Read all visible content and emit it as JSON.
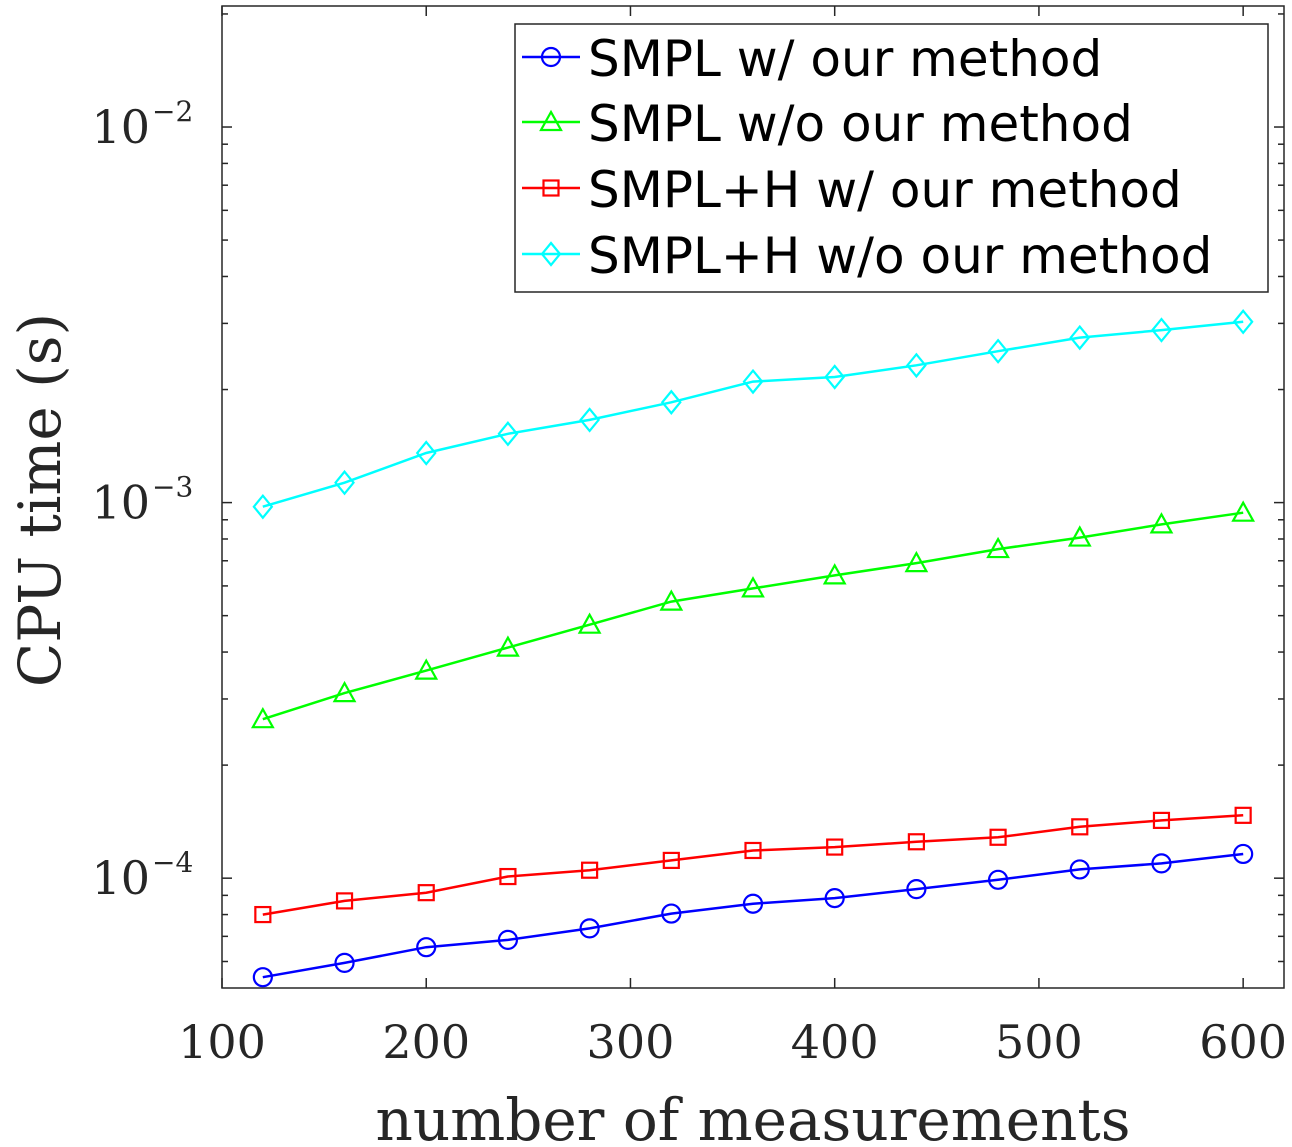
{
  "chart_data": {
    "type": "line",
    "title": "",
    "xlabel": "number of measurements",
    "ylabel": "CPU time (s)",
    "xscale": "linear",
    "yscale": "log",
    "xlim": [
      100,
      620
    ],
    "ylim": [
      5.1e-05,
      0.021
    ],
    "xticks": [
      100,
      200,
      300,
      400,
      500,
      600
    ],
    "yticks": [
      {
        "value": 0.01,
        "base": "10",
        "exponent": "−2"
      },
      {
        "value": 0.001,
        "base": "10",
        "exponent": "−3"
      },
      {
        "value": 0.0001,
        "base": "10",
        "exponent": "−4"
      }
    ],
    "legend_position": "top-right",
    "x": [
      120,
      160,
      200,
      240,
      280,
      320,
      360,
      400,
      440,
      480,
      520,
      560,
      600
    ],
    "series": [
      {
        "name": "SMPL w/ our method",
        "color": "#0000ff",
        "marker": "circle",
        "values": [
          5.45e-05,
          5.95e-05,
          6.55e-05,
          6.85e-05,
          7.35e-05,
          8.05e-05,
          8.55e-05,
          8.85e-05,
          9.35e-05,
          9.9e-05,
          0.0001055,
          0.0001095,
          0.000116
        ]
      },
      {
        "name": "SMPL w/o our method",
        "color": "#00ff00",
        "marker": "triangle",
        "values": [
          0.000265,
          0.000311,
          0.000357,
          0.000411,
          0.000473,
          0.000545,
          0.000591,
          0.00064,
          0.00069,
          0.000752,
          0.000807,
          0.000875,
          0.00094
        ]
      },
      {
        "name": "SMPL+H w/ our method",
        "color": "#ff0000",
        "marker": "square",
        "values": [
          8e-05,
          8.7e-05,
          9.15e-05,
          0.000101,
          0.000105,
          0.0001115,
          0.0001185,
          0.000121,
          0.000125,
          0.0001285,
          0.000137,
          0.0001425,
          0.000147
        ]
      },
      {
        "name": "SMPL+H w/o our method",
        "color": "#00ffff",
        "marker": "diamond",
        "values": [
          0.000975,
          0.00113,
          0.001355,
          0.001525,
          0.00166,
          0.00185,
          0.0021,
          0.00216,
          0.00232,
          0.00253,
          0.00275,
          0.00288,
          0.00303
        ]
      }
    ]
  }
}
